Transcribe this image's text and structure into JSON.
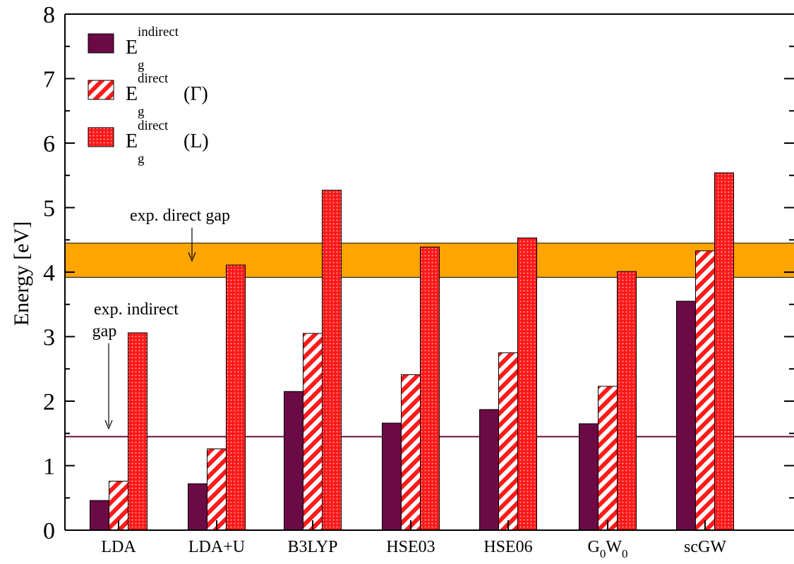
{
  "chart_data": {
    "type": "bar",
    "title": "",
    "xlabel": "",
    "ylabel": "Energy [eV]",
    "ylim": [
      0,
      8
    ],
    "y_ticks": [
      "0",
      "1",
      "2",
      "3",
      "4",
      "5",
      "6",
      "7",
      "8"
    ],
    "y_tick_values": [
      0,
      1,
      2,
      3,
      4,
      5,
      6,
      7,
      8
    ],
    "categories": [
      {
        "label": "LDA"
      },
      {
        "label": "LDA+U"
      },
      {
        "label": "B3LYP"
      },
      {
        "label": "HSE03"
      },
      {
        "label": "HSE06"
      },
      {
        "label": "G",
        "sub1": "0",
        "mid": "W",
        "sub2": "0"
      },
      {
        "label": "scGW"
      }
    ],
    "series": [
      {
        "key": "indirect",
        "main": "E",
        "sub": "g",
        "sup": "indirect",
        "suffix": "",
        "color": "#6b0a45",
        "pattern": "solid",
        "values": [
          0.46,
          0.72,
          2.15,
          1.66,
          1.87,
          1.65,
          3.55
        ]
      },
      {
        "key": "direct_gamma",
        "main": "E",
        "sub": "g",
        "sup": "direct",
        "suffix": "(Γ)",
        "color": "#ff1a1a",
        "pattern": "hatch",
        "values": [
          0.76,
          1.26,
          3.05,
          2.41,
          2.75,
          2.23,
          4.33
        ]
      },
      {
        "key": "direct_L",
        "main": "E",
        "sub": "g",
        "sup": "direct",
        "suffix": "(L)",
        "color": "#ff1a1a",
        "pattern": "dots",
        "values": [
          3.06,
          4.11,
          5.27,
          4.39,
          4.53,
          4.01,
          5.54
        ]
      }
    ],
    "legend_position": "top-left",
    "reference_band": {
      "label": "exp. direct gap",
      "y_low": 3.92,
      "y_high": 4.45,
      "color": "#ffa500"
    },
    "reference_line": {
      "label_line1": "exp. indirect",
      "label_line2": "gap",
      "y": 1.45,
      "color": "#6b0a45"
    },
    "grid": false
  }
}
